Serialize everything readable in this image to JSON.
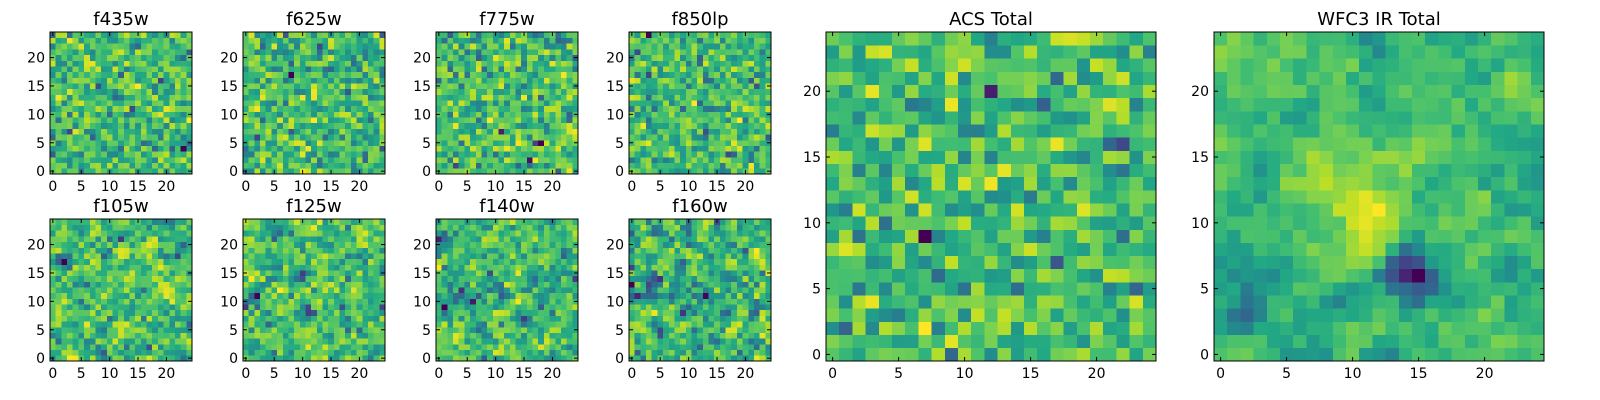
{
  "chart_data": [
    {
      "type": "heatmap",
      "title": "f435w",
      "grid_size": 25,
      "colormap": "viridis",
      "seed": 11,
      "smooth": 0,
      "xticks": [
        0,
        5,
        10,
        15,
        20
      ],
      "yticks": [
        0,
        5,
        10,
        15,
        20
      ],
      "xlim": [
        -0.5,
        24.5
      ],
      "ylim": [
        -0.5,
        24.5
      ]
    },
    {
      "type": "heatmap",
      "title": "f625w",
      "grid_size": 25,
      "colormap": "viridis",
      "seed": 23,
      "smooth": 0,
      "xticks": [
        0,
        5,
        10,
        15,
        20
      ],
      "yticks": [
        0,
        5,
        10,
        15,
        20
      ],
      "xlim": [
        -0.5,
        24.5
      ],
      "ylim": [
        -0.5,
        24.5
      ]
    },
    {
      "type": "heatmap",
      "title": "f775w",
      "grid_size": 25,
      "colormap": "viridis",
      "seed": 37,
      "smooth": 0,
      "xticks": [
        0,
        5,
        10,
        15,
        20
      ],
      "yticks": [
        0,
        5,
        10,
        15,
        20
      ],
      "xlim": [
        -0.5,
        24.5
      ],
      "ylim": [
        -0.5,
        24.5
      ]
    },
    {
      "type": "heatmap",
      "title": "f850lp",
      "grid_size": 25,
      "colormap": "viridis",
      "seed": 41,
      "smooth": 0,
      "xticks": [
        0,
        5,
        10,
        15,
        20
      ],
      "yticks": [
        0,
        5,
        10,
        15,
        20
      ],
      "xlim": [
        -0.5,
        24.5
      ],
      "ylim": [
        -0.5,
        24.5
      ]
    },
    {
      "type": "heatmap",
      "title": "f105w",
      "grid_size": 25,
      "colormap": "viridis",
      "seed": 53,
      "smooth": 1,
      "xticks": [
        0,
        5,
        10,
        15,
        20
      ],
      "yticks": [
        0,
        5,
        10,
        15,
        20
      ],
      "xlim": [
        -0.5,
        24.5
      ],
      "ylim": [
        -0.5,
        24.5
      ]
    },
    {
      "type": "heatmap",
      "title": "f125w",
      "grid_size": 25,
      "colormap": "viridis",
      "seed": 67,
      "smooth": 1,
      "xticks": [
        0,
        5,
        10,
        15,
        20
      ],
      "yticks": [
        0,
        5,
        10,
        15,
        20
      ],
      "xlim": [
        -0.5,
        24.5
      ],
      "ylim": [
        -0.5,
        24.5
      ]
    },
    {
      "type": "heatmap",
      "title": "f140w",
      "grid_size": 25,
      "colormap": "viridis",
      "seed": 71,
      "smooth": 1,
      "xticks": [
        0,
        5,
        10,
        15,
        20
      ],
      "yticks": [
        0,
        5,
        10,
        15,
        20
      ],
      "xlim": [
        -0.5,
        24.5
      ],
      "ylim": [
        -0.5,
        24.5
      ]
    },
    {
      "type": "heatmap",
      "title": "f160w",
      "grid_size": 25,
      "colormap": "viridis",
      "seed": 83,
      "smooth": 1,
      "xticks": [
        0,
        5,
        10,
        15,
        20
      ],
      "yticks": [
        0,
        5,
        10,
        15,
        20
      ],
      "xlim": [
        -0.5,
        24.5
      ],
      "ylim": [
        -0.5,
        24.5
      ]
    },
    {
      "type": "heatmap",
      "title": "ACS Total",
      "grid_size": 25,
      "colormap": "viridis",
      "seed": 97,
      "smooth": 0,
      "xticks": [
        0,
        5,
        10,
        15,
        20
      ],
      "yticks": [
        0,
        5,
        10,
        15,
        20
      ],
      "xlim": [
        -0.5,
        24.5
      ],
      "ylim": [
        -0.5,
        24.5
      ]
    },
    {
      "type": "heatmap",
      "title": "WFC3 IR Total",
      "grid_size": 25,
      "colormap": "viridis",
      "seed": 101,
      "smooth": 2,
      "features": [
        {
          "row": 6,
          "col": 15,
          "amp": -1.4,
          "sigma": 1.5
        },
        {
          "row": 12,
          "col": 11,
          "amp": 0.7,
          "sigma": 2.5
        },
        {
          "row": 3,
          "col": 2,
          "amp": -0.8,
          "sigma": 1.0
        }
      ],
      "xticks": [
        0,
        5,
        10,
        15,
        20
      ],
      "yticks": [
        0,
        5,
        10,
        15,
        20
      ],
      "xlim": [
        -0.5,
        24.5
      ],
      "ylim": [
        -0.5,
        24.5
      ]
    }
  ]
}
